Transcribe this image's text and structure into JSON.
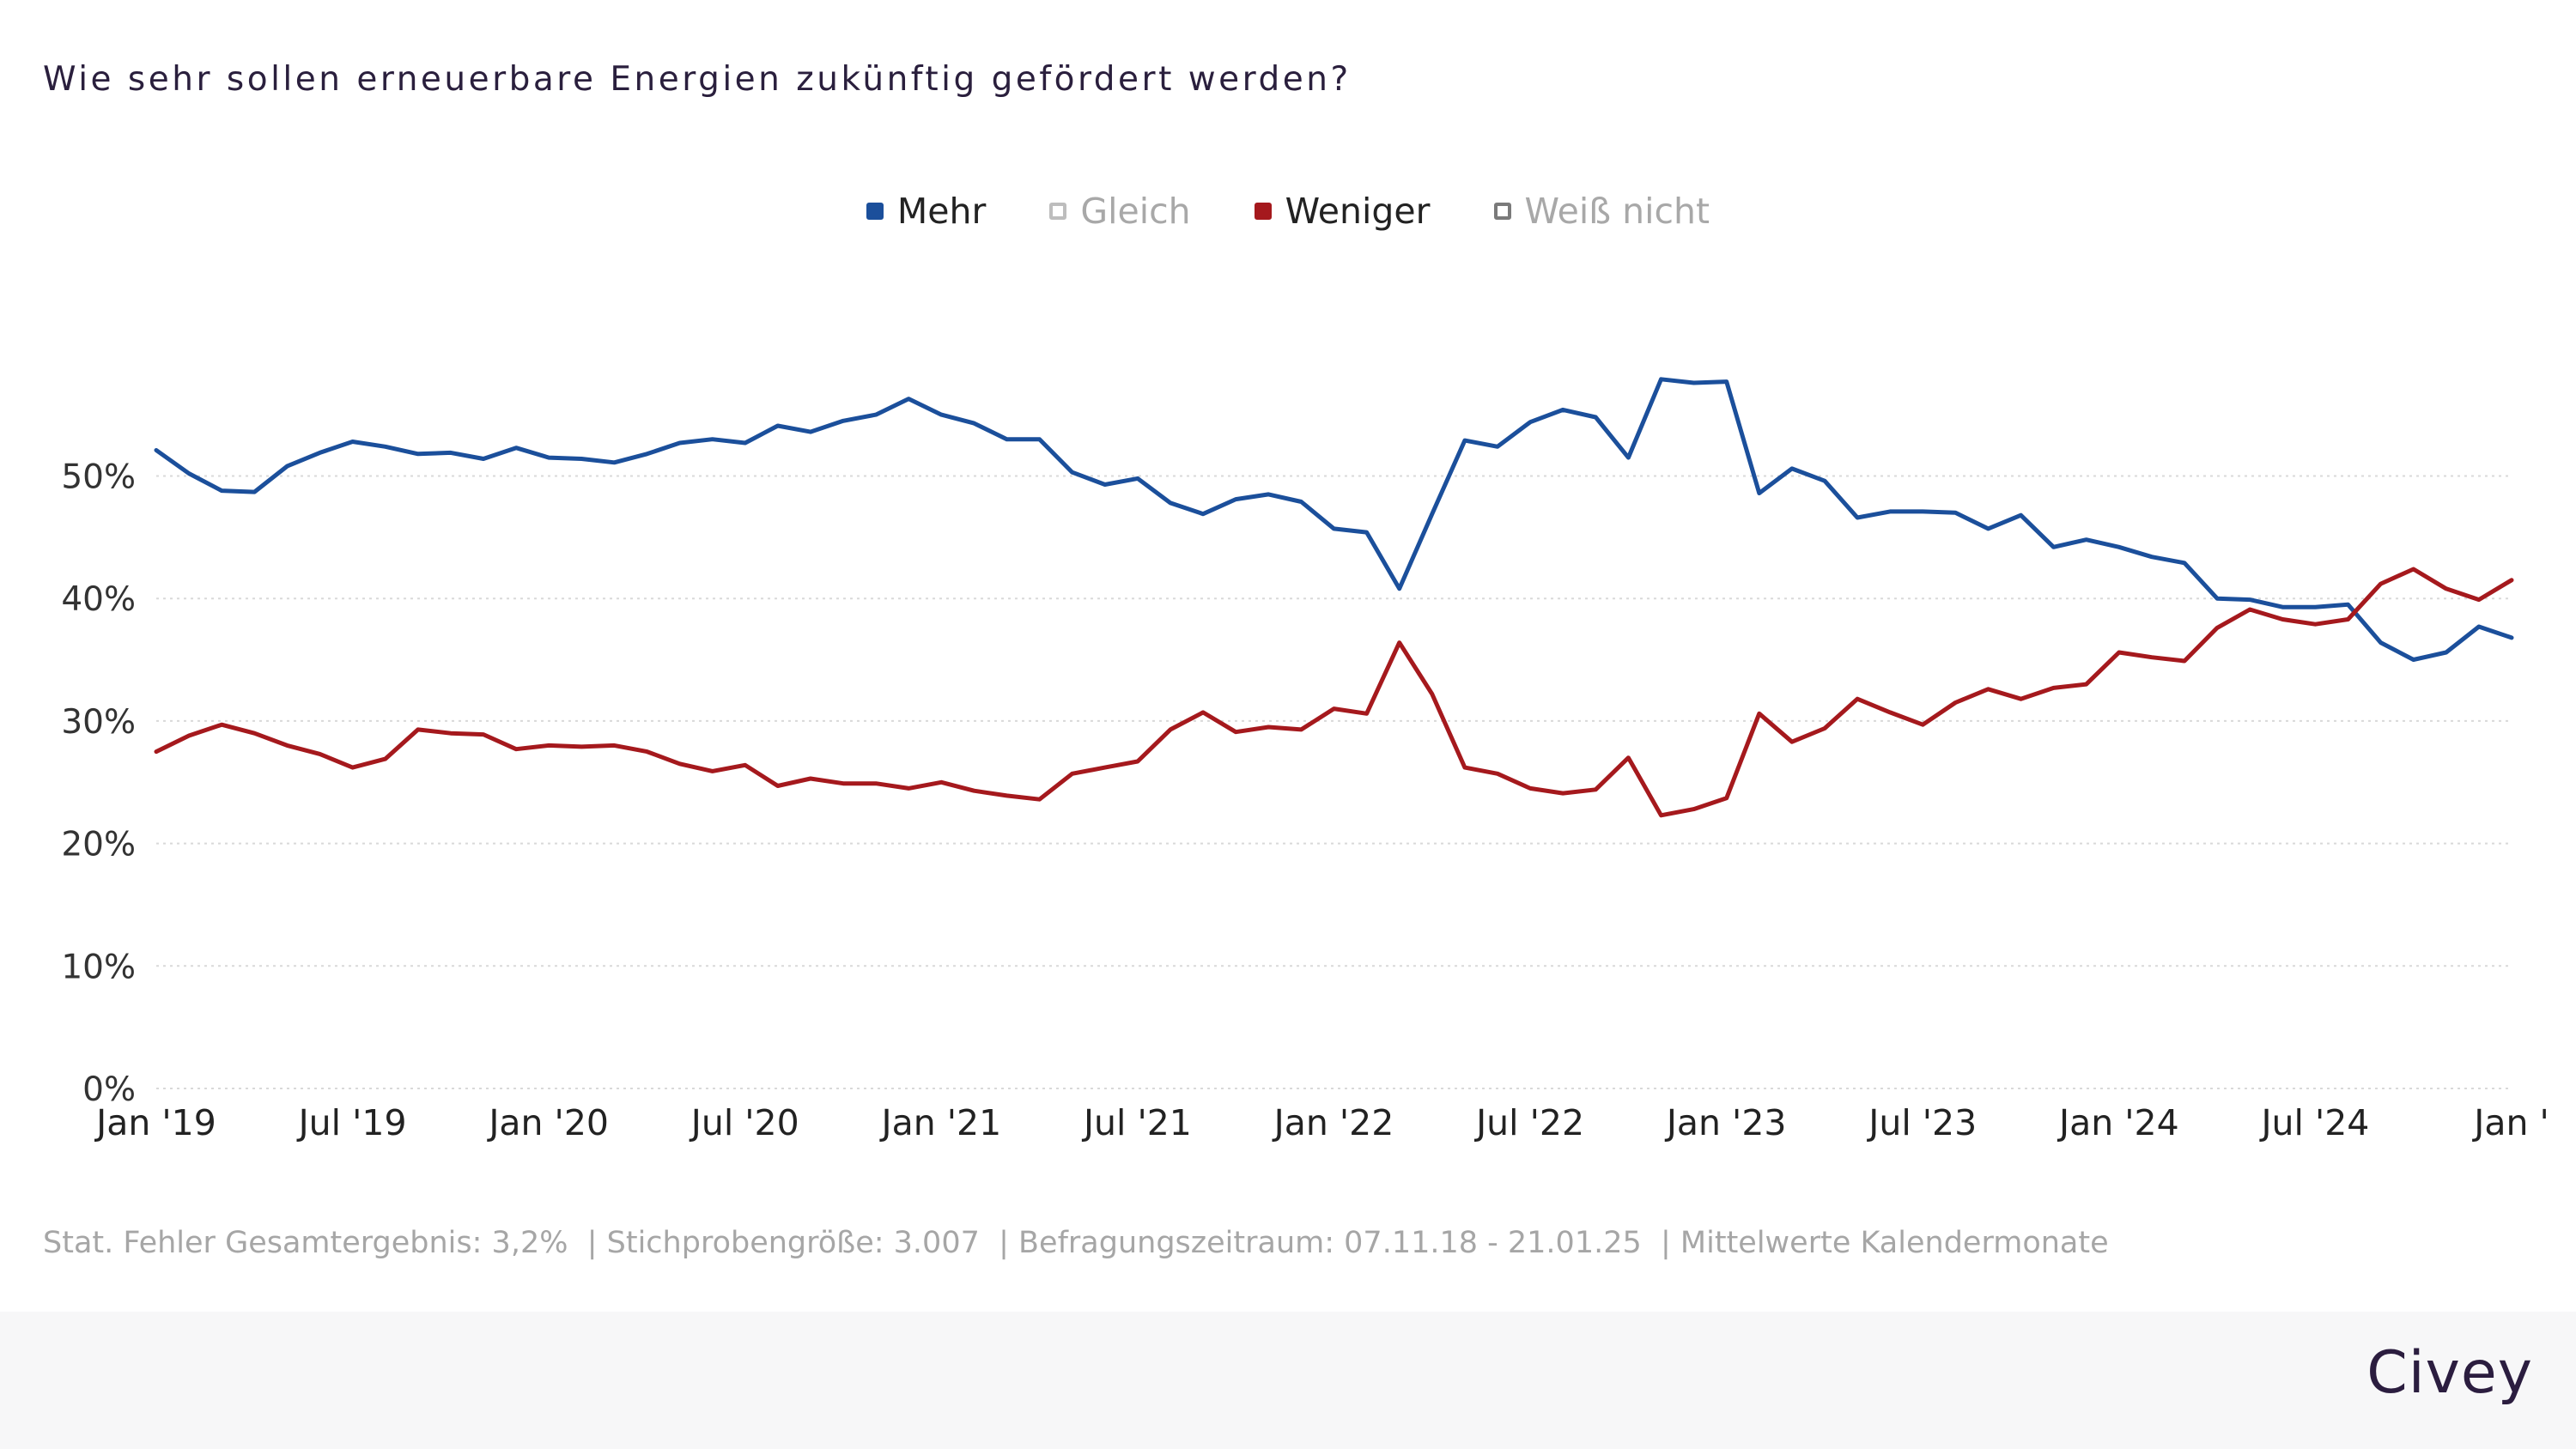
{
  "header": {
    "title": "Wie sehr sollen erneuerbare Energien zukünftig gefördert werden?"
  },
  "legend": [
    {
      "label": "Mehr",
      "color": "#1b4f9b",
      "active": true
    },
    {
      "label": "Gleich",
      "color": "#bdbdbd",
      "active": false
    },
    {
      "label": "Weniger",
      "color": "#a5191d",
      "active": true
    },
    {
      "label": "Weiß nicht",
      "color": "#7a7a7a",
      "active": false
    }
  ],
  "footnote": "Stat. Fehler Gesamtergebnis: 3,2%  | Stichprobengröße: 3.007  | Befragungszeitraum: 07.11.18 - 21.01.25  | Mittelwerte Kalendermonate",
  "brand": "Civey",
  "chart_data": {
    "type": "line",
    "title": "Wie sehr sollen erneuerbare Energien zukünftig gefördert werden?",
    "ylim": [
      0,
      60
    ],
    "y_ticks": [
      0,
      10,
      20,
      30,
      40,
      50
    ],
    "y_tick_labels": [
      "0%",
      "10%",
      "20%",
      "30%",
      "40%",
      "50%"
    ],
    "x_ticks": [
      "Jan '19",
      "Jul '19",
      "Jan '20",
      "Jul '20",
      "Jan '21",
      "Jul '21",
      "Jan '22",
      "Jul '22",
      "Jan '23",
      "Jul '23",
      "Jan '24",
      "Jul '24",
      "Jan '"
    ],
    "x_start": "2019-01",
    "x_end": "2025-01",
    "grid": "horizontal-dotted",
    "legend_position": "top-center",
    "x": [
      "2019-01",
      "2019-02",
      "2019-03",
      "2019-04",
      "2019-05",
      "2019-06",
      "2019-07",
      "2019-08",
      "2019-09",
      "2019-10",
      "2019-11",
      "2019-12",
      "2020-01",
      "2020-02",
      "2020-03",
      "2020-04",
      "2020-05",
      "2020-06",
      "2020-07",
      "2020-08",
      "2020-09",
      "2020-10",
      "2020-11",
      "2020-12",
      "2021-01",
      "2021-02",
      "2021-03",
      "2021-04",
      "2021-05",
      "2021-06",
      "2021-07",
      "2021-08",
      "2021-09",
      "2021-10",
      "2021-11",
      "2021-12",
      "2022-01",
      "2022-02",
      "2022-03",
      "2022-04",
      "2022-05",
      "2022-06",
      "2022-07",
      "2022-08",
      "2022-09",
      "2022-10",
      "2022-11",
      "2022-12",
      "2023-01",
      "2023-02",
      "2023-03",
      "2023-04",
      "2023-05",
      "2023-06",
      "2023-07",
      "2023-08",
      "2023-09",
      "2023-10",
      "2023-11",
      "2023-12",
      "2024-01",
      "2024-02",
      "2024-03",
      "2024-04",
      "2024-05",
      "2024-06",
      "2024-07",
      "2024-08",
      "2024-09",
      "2024-10",
      "2024-11",
      "2024-12",
      "2025-01"
    ],
    "series": [
      {
        "name": "Mehr",
        "color": "#1b4f9b",
        "values": [
          52.1,
          50.2,
          48.8,
          48.7,
          50.8,
          51.9,
          52.8,
          52.4,
          51.8,
          51.9,
          51.4,
          52.3,
          51.5,
          51.4,
          51.1,
          51.8,
          52.7,
          53.0,
          52.7,
          54.1,
          53.6,
          54.5,
          55.0,
          56.3,
          55.0,
          54.3,
          53.0,
          53.0,
          50.3,
          49.3,
          49.8,
          47.8,
          46.9,
          48.1,
          48.5,
          47.9,
          45.7,
          45.4,
          40.8,
          46.9,
          52.9,
          52.4,
          54.4,
          55.4,
          54.8,
          51.5,
          57.9,
          57.6,
          57.7,
          48.6,
          50.6,
          49.6,
          46.6,
          47.1,
          47.1,
          47.0,
          45.7,
          46.8,
          44.2,
          44.8,
          44.2,
          43.4,
          42.9,
          40.0,
          39.9,
          39.3,
          39.3,
          39.5,
          36.4,
          35.0,
          35.6,
          37.7,
          36.8
        ]
      },
      {
        "name": "Weniger",
        "color": "#a5191d",
        "values": [
          27.5,
          28.8,
          29.7,
          29.0,
          28.0,
          27.3,
          26.2,
          26.9,
          29.3,
          29.0,
          28.9,
          27.7,
          28.0,
          27.9,
          28.0,
          27.5,
          26.5,
          25.9,
          26.4,
          24.7,
          25.3,
          24.9,
          24.9,
          24.5,
          25.0,
          24.3,
          23.9,
          23.6,
          25.7,
          26.2,
          26.7,
          29.3,
          30.7,
          29.1,
          29.5,
          29.3,
          31.0,
          30.6,
          36.4,
          32.2,
          26.2,
          25.7,
          24.5,
          24.1,
          24.4,
          27.0,
          22.3,
          22.8,
          23.7,
          30.6,
          28.3,
          29.4,
          31.8,
          30.7,
          29.7,
          31.5,
          32.6,
          31.8,
          32.7,
          33.0,
          35.6,
          35.2,
          34.9,
          37.6,
          39.1,
          38.3,
          37.9,
          38.3,
          41.2,
          42.4,
          40.8,
          39.9,
          41.5
        ]
      }
    ]
  }
}
